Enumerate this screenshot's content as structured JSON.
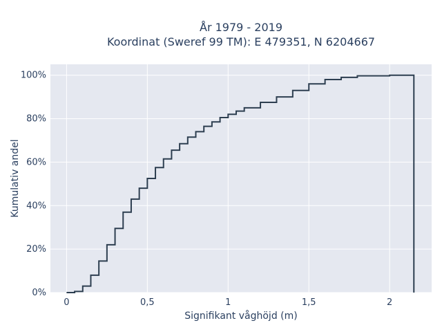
{
  "chart_data": {
    "type": "line",
    "title_lines": [
      "År 1979 - 2019",
      "Koordinat (Sweref 99 TM): E 479351, N 6204667"
    ],
    "xlabel": "Signifikant våghöjd (m)",
    "ylabel": "Kumulativ andel",
    "xlim": [
      -0.1,
      2.26
    ],
    "ylim": [
      0,
      1.05
    ],
    "x_ticks": [
      0,
      0.5,
      1,
      1.5,
      2
    ],
    "x_tick_labels": [
      "0",
      "0,5",
      "1",
      "1,5",
      "2"
    ],
    "y_ticks": [
      0,
      0.2,
      0.4,
      0.6,
      0.8,
      1.0
    ],
    "y_tick_labels": [
      "0%",
      "20%",
      "40%",
      "60%",
      "80%",
      "100%"
    ],
    "grid": true,
    "plot_background": "#e5e8f0",
    "line_color": "#2d3e50",
    "line_shape": "step",
    "series": [
      {
        "x": [
          0,
          0.05,
          0.1,
          0.15,
          0.2,
          0.25,
          0.3,
          0.35,
          0.4,
          0.45,
          0.5,
          0.55,
          0.6,
          0.65,
          0.7,
          0.75,
          0.8,
          0.85,
          0.9,
          0.95,
          1.0,
          1.05,
          1.1,
          1.2,
          1.3,
          1.4,
          1.5,
          1.6,
          1.7,
          1.8,
          2.0,
          2.15,
          2.15
        ],
        "y": [
          0,
          0.005,
          0.03,
          0.08,
          0.145,
          0.22,
          0.295,
          0.37,
          0.43,
          0.48,
          0.525,
          0.575,
          0.615,
          0.655,
          0.685,
          0.715,
          0.74,
          0.765,
          0.785,
          0.805,
          0.82,
          0.835,
          0.85,
          0.875,
          0.9,
          0.93,
          0.96,
          0.98,
          0.99,
          0.997,
          1.0,
          1.0,
          0
        ]
      }
    ]
  }
}
